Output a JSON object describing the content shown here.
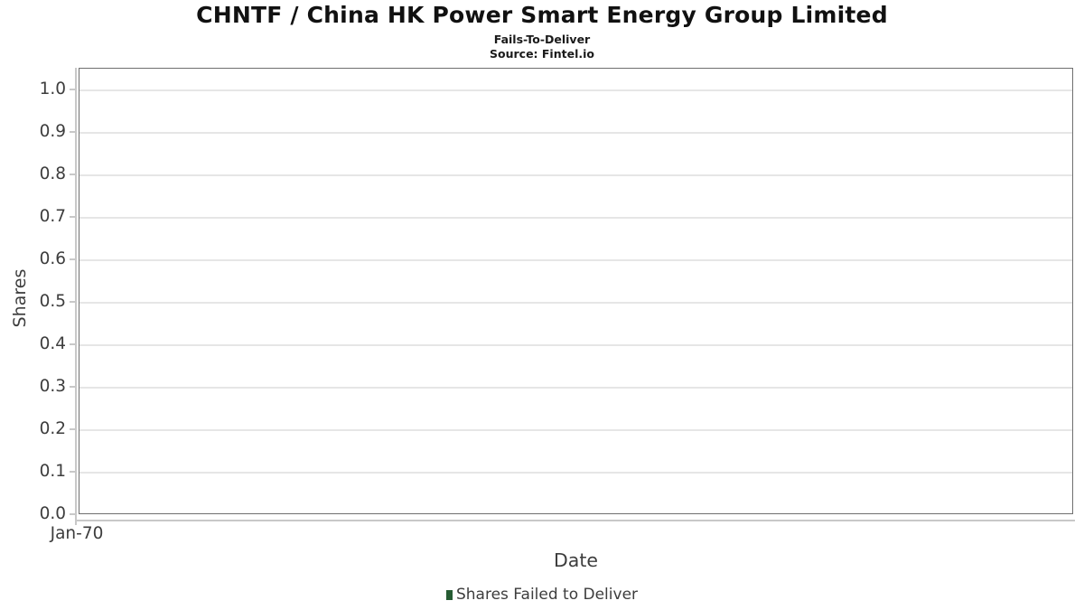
{
  "chart_data": {
    "type": "bar",
    "title": "CHNTF / China HK Power Smart Energy Group Limited",
    "subtitle": "Fails-To-Deliver",
    "source": "Source: Fintel.io",
    "xlabel": "Date",
    "ylabel": "Shares",
    "xticks": [
      "Jan-70"
    ],
    "ytick_labels": [
      "0.0",
      "0.1",
      "0.2",
      "0.3",
      "0.4",
      "0.5",
      "0.6",
      "0.7",
      "0.8",
      "0.9",
      "1.0"
    ],
    "ylim": [
      0.0,
      1.0
    ],
    "x": [],
    "series": [
      {
        "name": "Shares Failed to Deliver",
        "color": "#265c33",
        "values": []
      }
    ],
    "grid": true,
    "legend_position": "bottom",
    "colors": {
      "frame": "#6f6f6f",
      "gridline": "#e6e6e6",
      "axis_line": "#c8c8c8",
      "tick_text": "#3d3d3d",
      "title_text": "#111111",
      "legend_marker": "#265c33"
    }
  }
}
